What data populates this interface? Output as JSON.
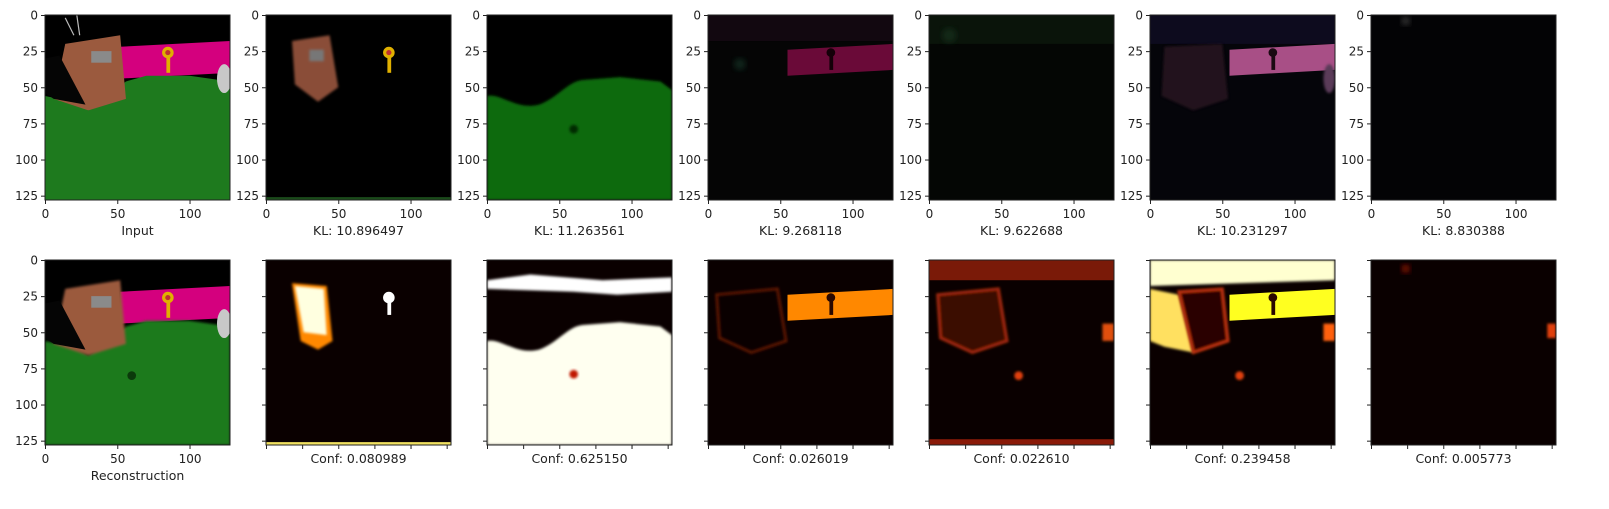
{
  "figure": {
    "colors": {
      "magenta_wall": "#d4007e",
      "green_floor": "#1e7a1e",
      "brown_box": "#9b5a3e",
      "gray_patch": "#8a8a8a",
      "key_gold": "#e0b000",
      "hot_white": "#ffffff",
      "hot_yellow": "#ffff20",
      "hot_orange": "#ff8800",
      "hot_red": "#c01800",
      "hot_black": "#0a0000"
    },
    "top_row": {
      "tick_labels_y": [
        "0",
        "25",
        "50",
        "75",
        "100",
        "125"
      ],
      "tick_labels_x": [
        "0",
        "50",
        "100"
      ],
      "panels": [
        {
          "caption": "Input",
          "kind": "input-image"
        },
        {
          "caption": "KL: 10.896497",
          "kind": "slot-box-key"
        },
        {
          "caption": "KL: 11.263561",
          "kind": "slot-floor"
        },
        {
          "caption": "KL: 9.268118",
          "kind": "slot-wall-dark"
        },
        {
          "caption": "KL: 9.622688",
          "kind": "slot-faint"
        },
        {
          "caption": "KL: 10.231297",
          "kind": "slot-wall-pink"
        },
        {
          "caption": "KL: 8.830388",
          "kind": "slot-empty"
        }
      ]
    },
    "bottom_row": {
      "tick_labels_y": [
        "0",
        "25",
        "50",
        "75",
        "100",
        "125"
      ],
      "tick_labels_x": [
        "0",
        "50",
        "100"
      ],
      "panels": [
        {
          "caption": "Reconstruction",
          "kind": "reconstruction"
        },
        {
          "caption": "Conf: 0.080989",
          "kind": "mask-box-key"
        },
        {
          "caption": "Conf: 0.625150",
          "kind": "mask-floor"
        },
        {
          "caption": "Conf: 0.026019",
          "kind": "mask-wall"
        },
        {
          "caption": "Conf: 0.022610",
          "kind": "mask-ceiling"
        },
        {
          "caption": "Conf: 0.239458",
          "kind": "mask-wall-bright"
        },
        {
          "caption": "Conf: 0.005773",
          "kind": "mask-empty"
        }
      ]
    }
  }
}
